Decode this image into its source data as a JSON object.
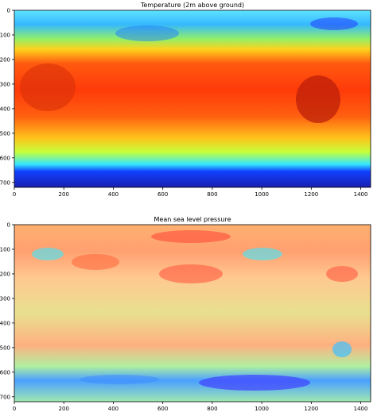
{
  "chart_data": [
    {
      "type": "image",
      "title": "Temperature (2m above ground)",
      "xlim": [
        0,
        1440
      ],
      "ylim": [
        720,
        0
      ],
      "xticks": [
        0,
        200,
        400,
        600,
        800,
        1000,
        1200,
        1400
      ],
      "yticks": [
        0,
        100,
        200,
        300,
        400,
        500,
        600,
        700
      ]
    },
    {
      "type": "image",
      "title": "Mean sea level pressure",
      "xlim": [
        0,
        1440
      ],
      "ylim": [
        720,
        0
      ],
      "xticks": [
        0,
        200,
        400,
        600,
        800,
        1000,
        1200,
        1400
      ],
      "yticks": [
        0,
        100,
        200,
        300,
        400,
        500,
        600,
        700
      ]
    }
  ]
}
